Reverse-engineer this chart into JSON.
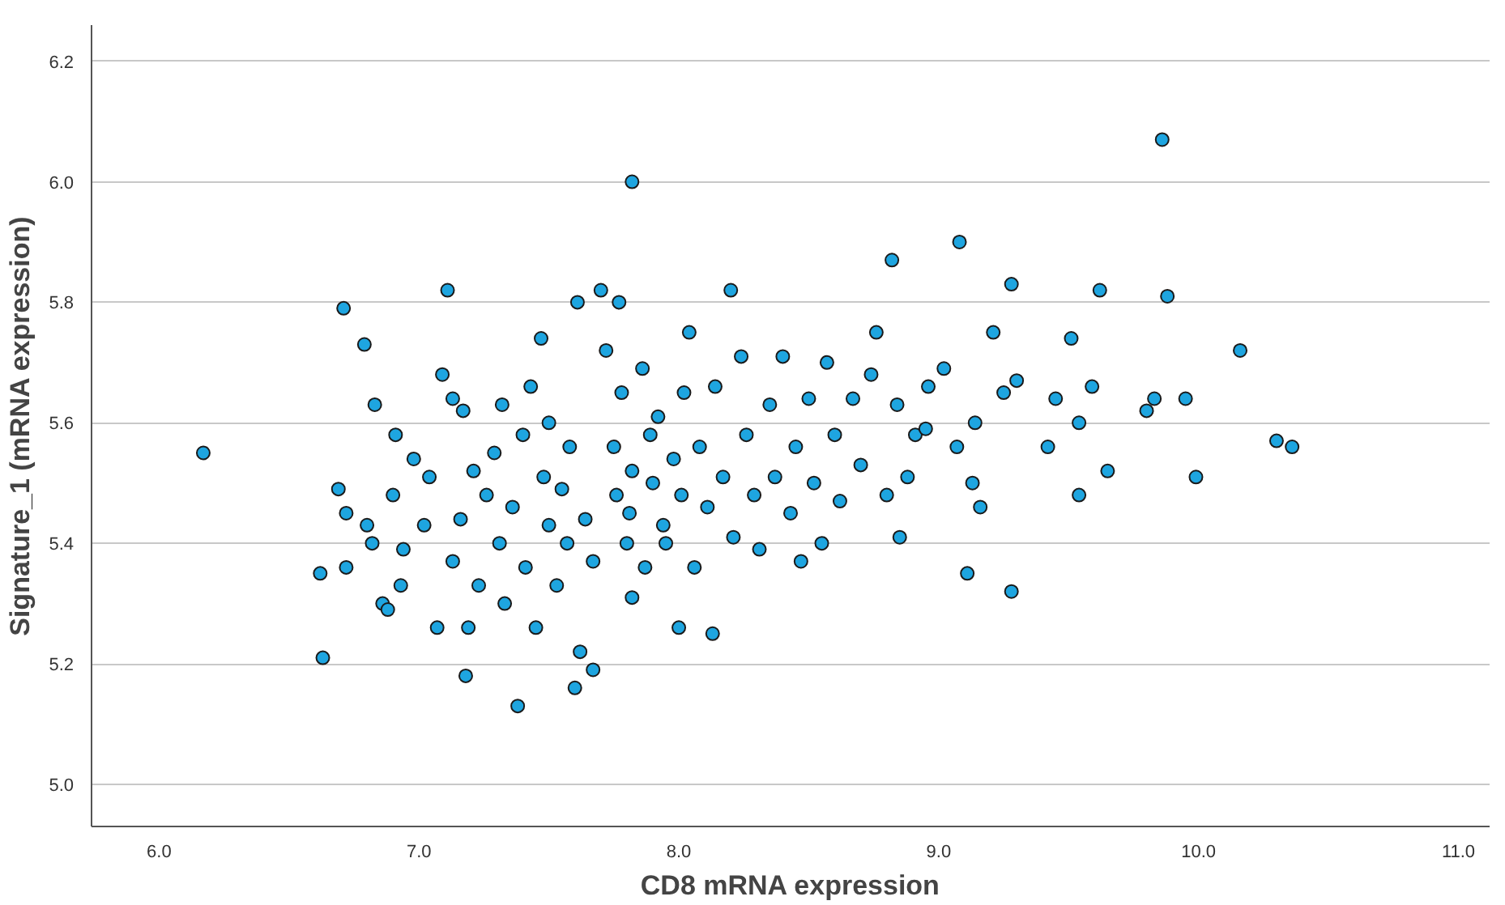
{
  "chart_data": {
    "type": "scatter",
    "xlabel": "CD8 mRNA expression",
    "ylabel": "Signature_1 (mRNA expression)",
    "xlim": [
      5.74,
      11.12
    ],
    "ylim": [
      4.93,
      6.26
    ],
    "xticks": [
      {
        "value": 6,
        "label": "6.0"
      },
      {
        "value": 7,
        "label": "7.0"
      },
      {
        "value": 8,
        "label": "8.0"
      },
      {
        "value": 9,
        "label": "9.0"
      },
      {
        "value": 10,
        "label": "10.0"
      },
      {
        "value": 11,
        "label": "11.0"
      }
    ],
    "yticks": [
      {
        "value": 5,
        "label": "5.0"
      },
      {
        "value": 5.2,
        "label": "5.2"
      },
      {
        "value": 5.4,
        "label": "5.4"
      },
      {
        "value": 5.6,
        "label": "5.6"
      },
      {
        "value": 5.8,
        "label": "5.8"
      },
      {
        "value": 6,
        "label": "6.0"
      },
      {
        "value": 6.2,
        "label": "6.2"
      }
    ],
    "grid": "y",
    "marker": "circle",
    "series": [
      {
        "color": "#1ea5e0",
        "x": [
          6.17,
          6.63,
          6.62,
          6.71,
          6.79,
          6.69,
          6.72,
          6.83,
          6.8,
          6.72,
          6.82,
          6.86,
          6.88,
          6.91,
          6.9,
          6.94,
          6.93,
          6.98,
          7.02,
          7.04,
          7.07,
          7.11,
          7.09,
          7.13,
          7.13,
          7.16,
          7.18,
          7.19,
          7.17,
          7.21,
          7.23,
          7.26,
          7.29,
          7.31,
          7.32,
          7.33,
          7.36,
          7.38,
          7.4,
          7.41,
          7.43,
          7.45,
          7.47,
          7.48,
          7.5,
          7.5,
          7.53,
          7.55,
          7.57,
          7.58,
          7.6,
          7.61,
          7.62,
          7.64,
          7.67,
          7.7,
          7.67,
          7.72,
          7.75,
          7.76,
          7.77,
          7.78,
          7.8,
          7.82,
          7.82,
          7.81,
          7.82,
          7.86,
          7.87,
          7.89,
          7.9,
          7.92,
          7.94,
          7.95,
          7.98,
          8.0,
          8.01,
          8.02,
          8.04,
          8.06,
          8.08,
          8.11,
          8.13,
          8.14,
          8.17,
          8.2,
          8.21,
          8.24,
          8.26,
          8.29,
          8.31,
          8.35,
          8.37,
          8.4,
          8.43,
          8.45,
          8.47,
          8.5,
          8.52,
          8.55,
          8.57,
          8.6,
          8.62,
          8.67,
          8.7,
          8.74,
          8.76,
          8.8,
          8.82,
          8.84,
          8.85,
          8.88,
          8.91,
          8.95,
          8.96,
          9.02,
          9.07,
          9.08,
          9.11,
          9.13,
          9.14,
          9.16,
          9.21,
          9.25,
          9.28,
          9.28,
          9.3,
          9.42,
          9.45,
          9.51,
          9.54,
          9.54,
          9.59,
          9.62,
          9.65,
          9.8,
          9.83,
          9.86,
          9.88,
          9.95,
          9.99,
          10.16,
          10.3,
          10.36
        ],
        "values": [
          5.55,
          5.21,
          5.35,
          5.79,
          5.73,
          5.49,
          5.45,
          5.63,
          5.43,
          5.36,
          5.4,
          5.3,
          5.29,
          5.58,
          5.48,
          5.39,
          5.33,
          5.54,
          5.43,
          5.51,
          5.26,
          5.82,
          5.68,
          5.64,
          5.37,
          5.44,
          5.18,
          5.26,
          5.62,
          5.52,
          5.33,
          5.48,
          5.55,
          5.4,
          5.63,
          5.3,
          5.46,
          5.13,
          5.58,
          5.36,
          5.66,
          5.26,
          5.74,
          5.51,
          5.43,
          5.6,
          5.33,
          5.49,
          5.4,
          5.56,
          5.16,
          5.8,
          5.22,
          5.44,
          5.37,
          5.82,
          5.19,
          5.72,
          5.56,
          5.48,
          5.8,
          5.65,
          5.4,
          5.52,
          6.0,
          5.45,
          5.31,
          5.69,
          5.36,
          5.58,
          5.5,
          5.61,
          5.43,
          5.4,
          5.54,
          5.26,
          5.48,
          5.65,
          5.75,
          5.36,
          5.56,
          5.46,
          5.25,
          5.66,
          5.51,
          5.82,
          5.41,
          5.71,
          5.58,
          5.48,
          5.39,
          5.63,
          5.51,
          5.71,
          5.45,
          5.56,
          5.37,
          5.64,
          5.5,
          5.4,
          5.7,
          5.58,
          5.47,
          5.64,
          5.53,
          5.68,
          5.75,
          5.48,
          5.87,
          5.63,
          5.41,
          5.51,
          5.58,
          5.59,
          5.66,
          5.69,
          5.56,
          5.9,
          5.35,
          5.5,
          5.6,
          5.46,
          5.75,
          5.65,
          5.32,
          5.83,
          5.67,
          5.56,
          5.64,
          5.74,
          5.6,
          5.48,
          5.66,
          5.82,
          5.52,
          5.62,
          5.64,
          6.07,
          5.81,
          5.64,
          5.51,
          5.72,
          5.57,
          5.56
        ]
      }
    ]
  }
}
